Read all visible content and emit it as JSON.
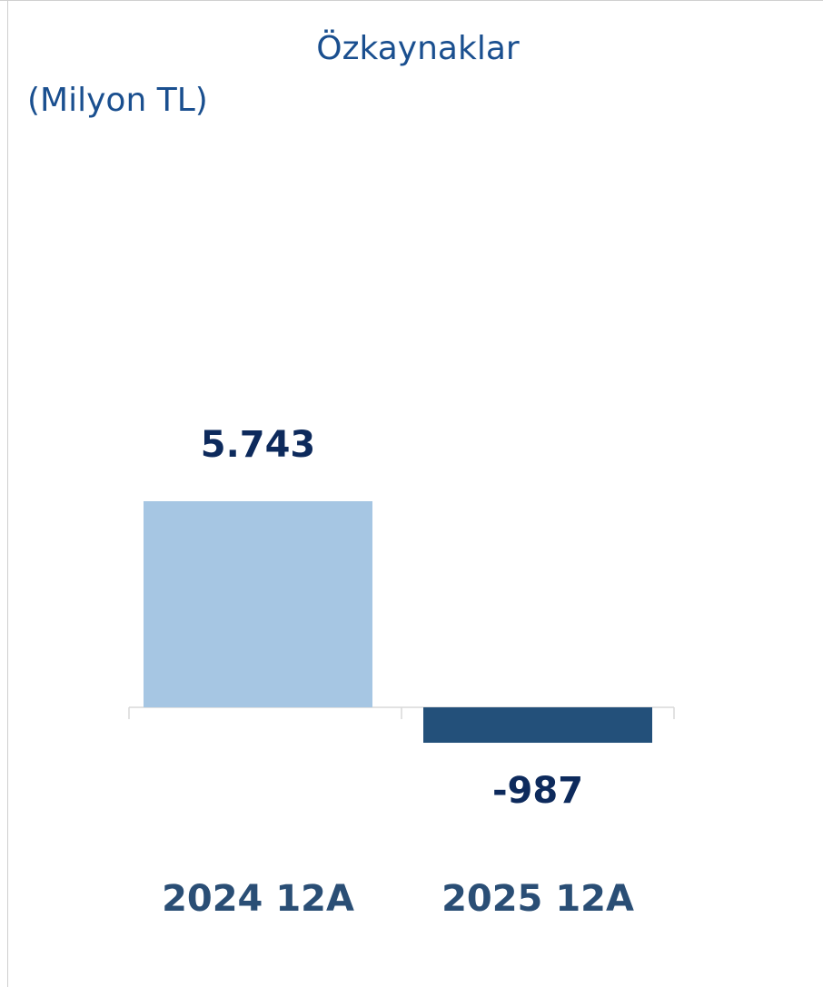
{
  "chart_data": {
    "type": "bar",
    "title": "Özkaynaklar",
    "subtitle": "(Milyon TL)",
    "categories": [
      "2024 12A",
      "2025 12A"
    ],
    "values": [
      5743,
      -987
    ],
    "value_labels": [
      "5.743",
      "-987"
    ],
    "colors": [
      "#a6c6e3",
      "#23507a"
    ]
  }
}
